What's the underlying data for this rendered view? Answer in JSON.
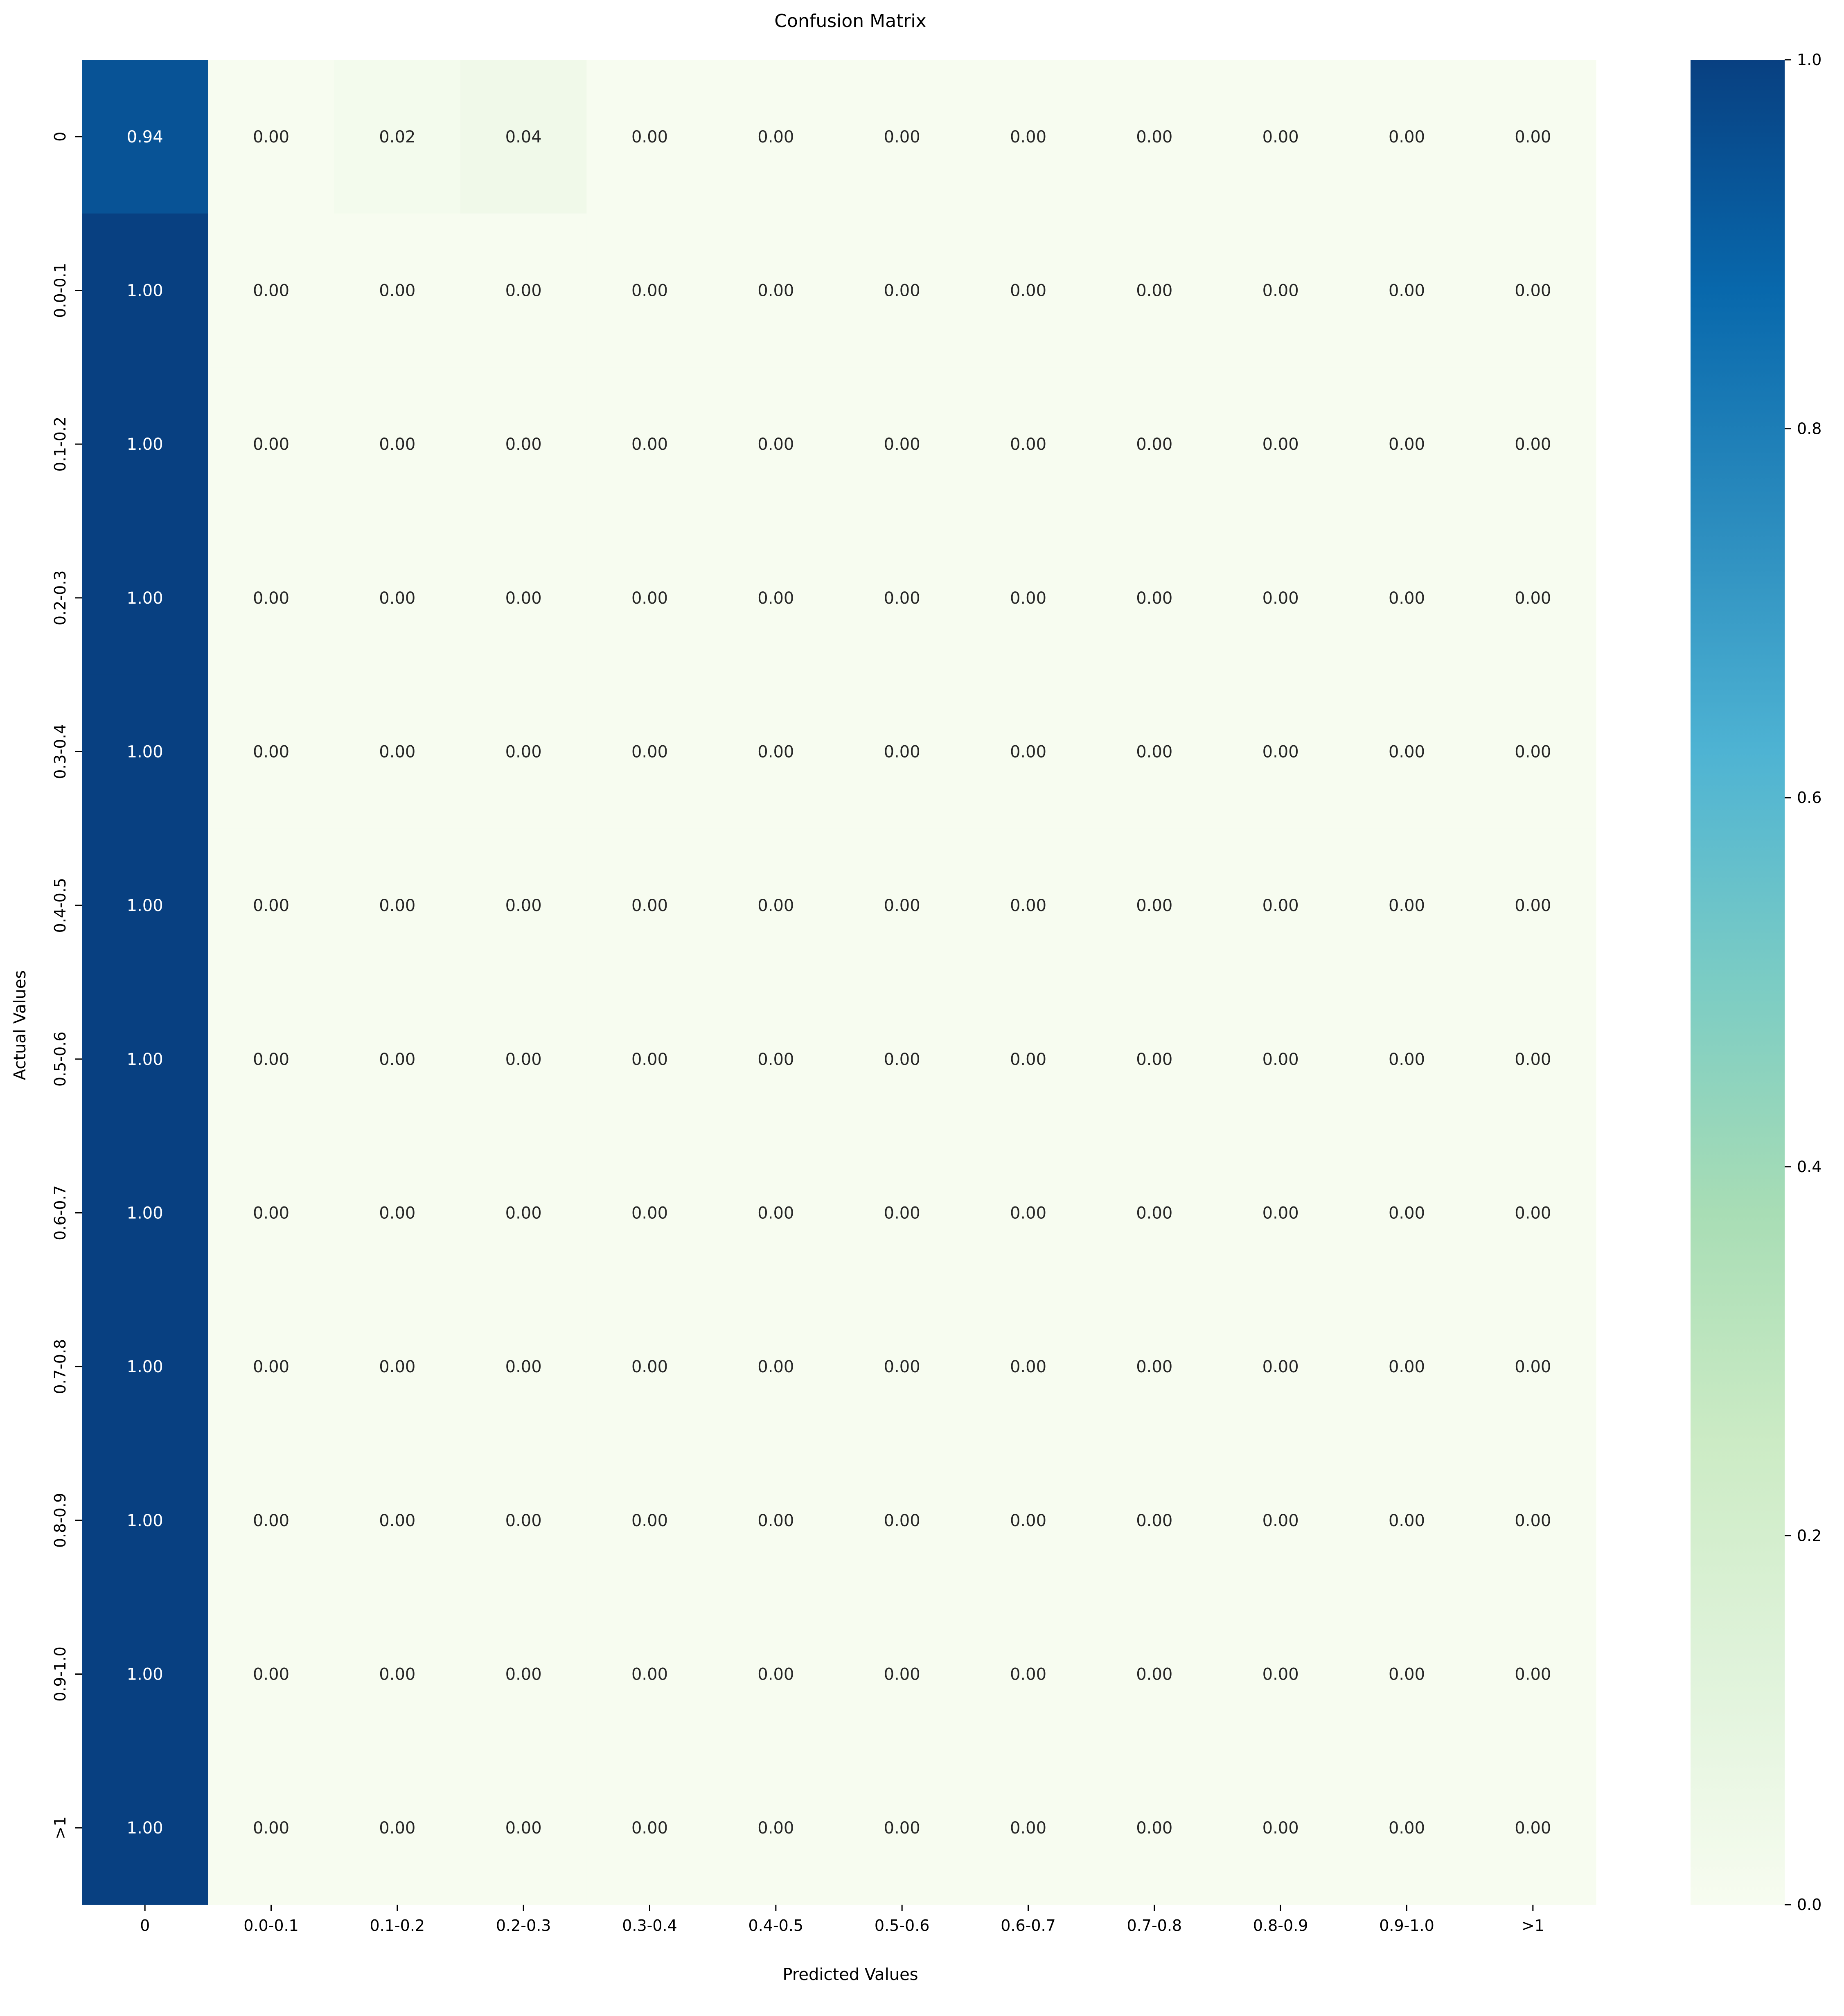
{
  "chart_data": {
    "type": "heatmap",
    "title": "Confusion Matrix",
    "xlabel": "Predicted Values",
    "ylabel": "Actual Values",
    "x_categories": [
      "0",
      "0.0-0.1",
      "0.1-0.2",
      "0.2-0.3",
      "0.3-0.4",
      "0.4-0.5",
      "0.5-0.6",
      "0.6-0.7",
      "0.7-0.8",
      "0.8-0.9",
      "0.9-1.0",
      ">1"
    ],
    "y_categories": [
      "0",
      "0.0-0.1",
      "0.1-0.2",
      "0.2-0.3",
      "0.3-0.4",
      "0.4-0.5",
      "0.5-0.6",
      "0.6-0.7",
      "0.7-0.8",
      "0.8-0.9",
      "0.9-1.0",
      ">1"
    ],
    "values": [
      [
        0.94,
        0.0,
        0.02,
        0.04,
        0.0,
        0.0,
        0.0,
        0.0,
        0.0,
        0.0,
        0.0,
        0.0
      ],
      [
        1.0,
        0.0,
        0.0,
        0.0,
        0.0,
        0.0,
        0.0,
        0.0,
        0.0,
        0.0,
        0.0,
        0.0
      ],
      [
        1.0,
        0.0,
        0.0,
        0.0,
        0.0,
        0.0,
        0.0,
        0.0,
        0.0,
        0.0,
        0.0,
        0.0
      ],
      [
        1.0,
        0.0,
        0.0,
        0.0,
        0.0,
        0.0,
        0.0,
        0.0,
        0.0,
        0.0,
        0.0,
        0.0
      ],
      [
        1.0,
        0.0,
        0.0,
        0.0,
        0.0,
        0.0,
        0.0,
        0.0,
        0.0,
        0.0,
        0.0,
        0.0
      ],
      [
        1.0,
        0.0,
        0.0,
        0.0,
        0.0,
        0.0,
        0.0,
        0.0,
        0.0,
        0.0,
        0.0,
        0.0
      ],
      [
        1.0,
        0.0,
        0.0,
        0.0,
        0.0,
        0.0,
        0.0,
        0.0,
        0.0,
        0.0,
        0.0,
        0.0
      ],
      [
        1.0,
        0.0,
        0.0,
        0.0,
        0.0,
        0.0,
        0.0,
        0.0,
        0.0,
        0.0,
        0.0,
        0.0
      ],
      [
        1.0,
        0.0,
        0.0,
        0.0,
        0.0,
        0.0,
        0.0,
        0.0,
        0.0,
        0.0,
        0.0,
        0.0
      ],
      [
        1.0,
        0.0,
        0.0,
        0.0,
        0.0,
        0.0,
        0.0,
        0.0,
        0.0,
        0.0,
        0.0,
        0.0
      ],
      [
        1.0,
        0.0,
        0.0,
        0.0,
        0.0,
        0.0,
        0.0,
        0.0,
        0.0,
        0.0,
        0.0,
        0.0
      ],
      [
        1.0,
        0.0,
        0.0,
        0.0,
        0.0,
        0.0,
        0.0,
        0.0,
        0.0,
        0.0,
        0.0,
        0.0
      ]
    ],
    "value_format": "0.00",
    "colormap": "GnBu",
    "colormap_stops": [
      "#f7fcf0",
      "#e0f3db",
      "#ccebc5",
      "#a8ddb5",
      "#7bccc4",
      "#4eb3d3",
      "#2b8cbe",
      "#0868ac",
      "#084081"
    ],
    "colorbar": {
      "range": [
        0.0,
        1.0
      ],
      "ticks": [
        "0.0",
        "0.2",
        "0.4",
        "0.6",
        "0.8",
        "1.0"
      ]
    },
    "grid": false,
    "legend": "colorbar-right"
  }
}
